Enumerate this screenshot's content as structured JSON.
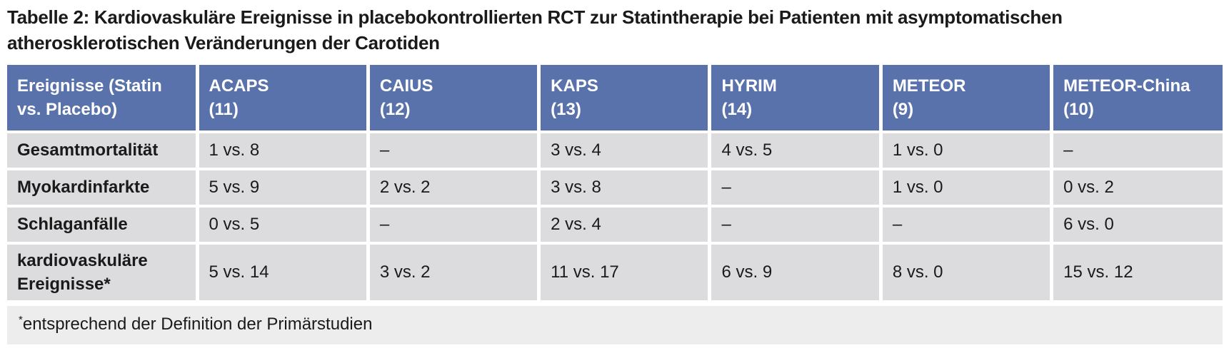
{
  "title": "Tabelle 2: Kardiovaskuläre Ereignisse in placebokontrollierten RCT zur Statintherapie bei Patienten mit asymptomatischen atherosklerotischen Veränderungen der Carotiden",
  "colors": {
    "header_bg": "#5a72ab",
    "header_text": "#ffffff",
    "cell_bg": "#dcdcde",
    "footnote_bg": "#ededee",
    "text": "#1a1a1a"
  },
  "table": {
    "row_header_label": "Ereignisse (Statin vs. Placebo)",
    "columns": [
      {
        "name": "ACAPS",
        "ref": "(11)"
      },
      {
        "name": "CAIUS",
        "ref": "(12)"
      },
      {
        "name": "KAPS",
        "ref": "(13)"
      },
      {
        "name": "HYRIM",
        "ref": "(14)"
      },
      {
        "name": "METEOR",
        "ref": "(9)"
      },
      {
        "name": "METEOR-China",
        "ref": "(10)"
      }
    ],
    "rows": [
      {
        "label": "Gesamtmortalität",
        "values": [
          "1 vs. 8",
          "–",
          "3 vs. 4",
          "4 vs. 5",
          "1 vs. 0",
          "–"
        ]
      },
      {
        "label": "Myokardinfarkte",
        "values": [
          "5 vs. 9",
          "2 vs. 2",
          "3 vs. 8",
          "–",
          "1 vs. 0",
          "0 vs. 2"
        ]
      },
      {
        "label": "Schlaganfälle",
        "values": [
          "0 vs. 5",
          "–",
          "2 vs. 4",
          "–",
          "–",
          "6 vs. 0"
        ]
      },
      {
        "label": "kardiovaskuläre Ereignisse*",
        "values": [
          "5 vs. 14",
          "3 vs. 2",
          "11 vs. 17",
          "6 vs. 9",
          "8 vs. 0",
          "15 vs. 12"
        ]
      }
    ],
    "footnote": {
      "marker": "*",
      "text": "entsprechend der Definition der Primärstudien"
    }
  }
}
